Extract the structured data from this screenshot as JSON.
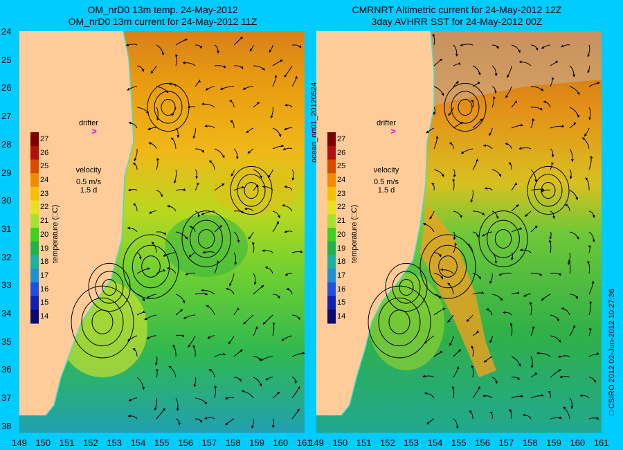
{
  "left_panel": {
    "title_line1": "OM_nrD0 13m temp. 24-May-2012",
    "title_line2": "OM_nrD0 13m current for 24-May-2012 11Z",
    "drifter_label": "drifter",
    "drifter_symbol": ">",
    "velocity_label": "velocity",
    "velocity_scale": "0.5 m/s",
    "velocity_time": "1.5 d",
    "colorbar_title": "temperature (□C)"
  },
  "right_panel": {
    "title_line1": "CMRNRT Altimetric current for 24-May-2012 12Z",
    "title_line2": "3day AVHRR SST for 24-May-2012 00Z",
    "drifter_label": "drifter",
    "drifter_symbol": ">",
    "velocity_label": "velocity",
    "velocity_scale": "0.5 m/s",
    "velocity_time": "1.5 d",
    "colorbar_title": "temperature (□C)"
  },
  "side_labels": {
    "run_id": "ocean_nrt01_20120524",
    "credit": "□ CSIRO 2012   02-Jun-2012 10:27:36"
  },
  "axes": {
    "y_ticks": [
      "24",
      "25",
      "26",
      "27",
      "28",
      "29",
      "30",
      "31",
      "32",
      "33",
      "34",
      "35",
      "36",
      "37",
      "38"
    ],
    "x_ticks": [
      "149",
      "150",
      "151",
      "152",
      "153",
      "154",
      "155",
      "156",
      "157",
      "158",
      "159",
      "160",
      "161"
    ]
  },
  "colorbar": {
    "ticks": [
      "27",
      "26",
      "25",
      "24",
      "23",
      "22",
      "21",
      "20",
      "19",
      "18",
      "17",
      "16",
      "15",
      "14"
    ],
    "colors": [
      "#7a0000",
      "#b01010",
      "#d84a00",
      "#f08c00",
      "#f5c000",
      "#e8e020",
      "#a8e030",
      "#40d020",
      "#20b050",
      "#20b0a0",
      "#2090d0",
      "#2050e0",
      "#1020b0",
      "#0a0a70"
    ]
  },
  "colors": {
    "background": "#00ccff",
    "land": "#ffcc99",
    "coast_line": "#40e0d0",
    "drifter": "#ff00ff",
    "no_data": "#c8b0a0"
  }
}
